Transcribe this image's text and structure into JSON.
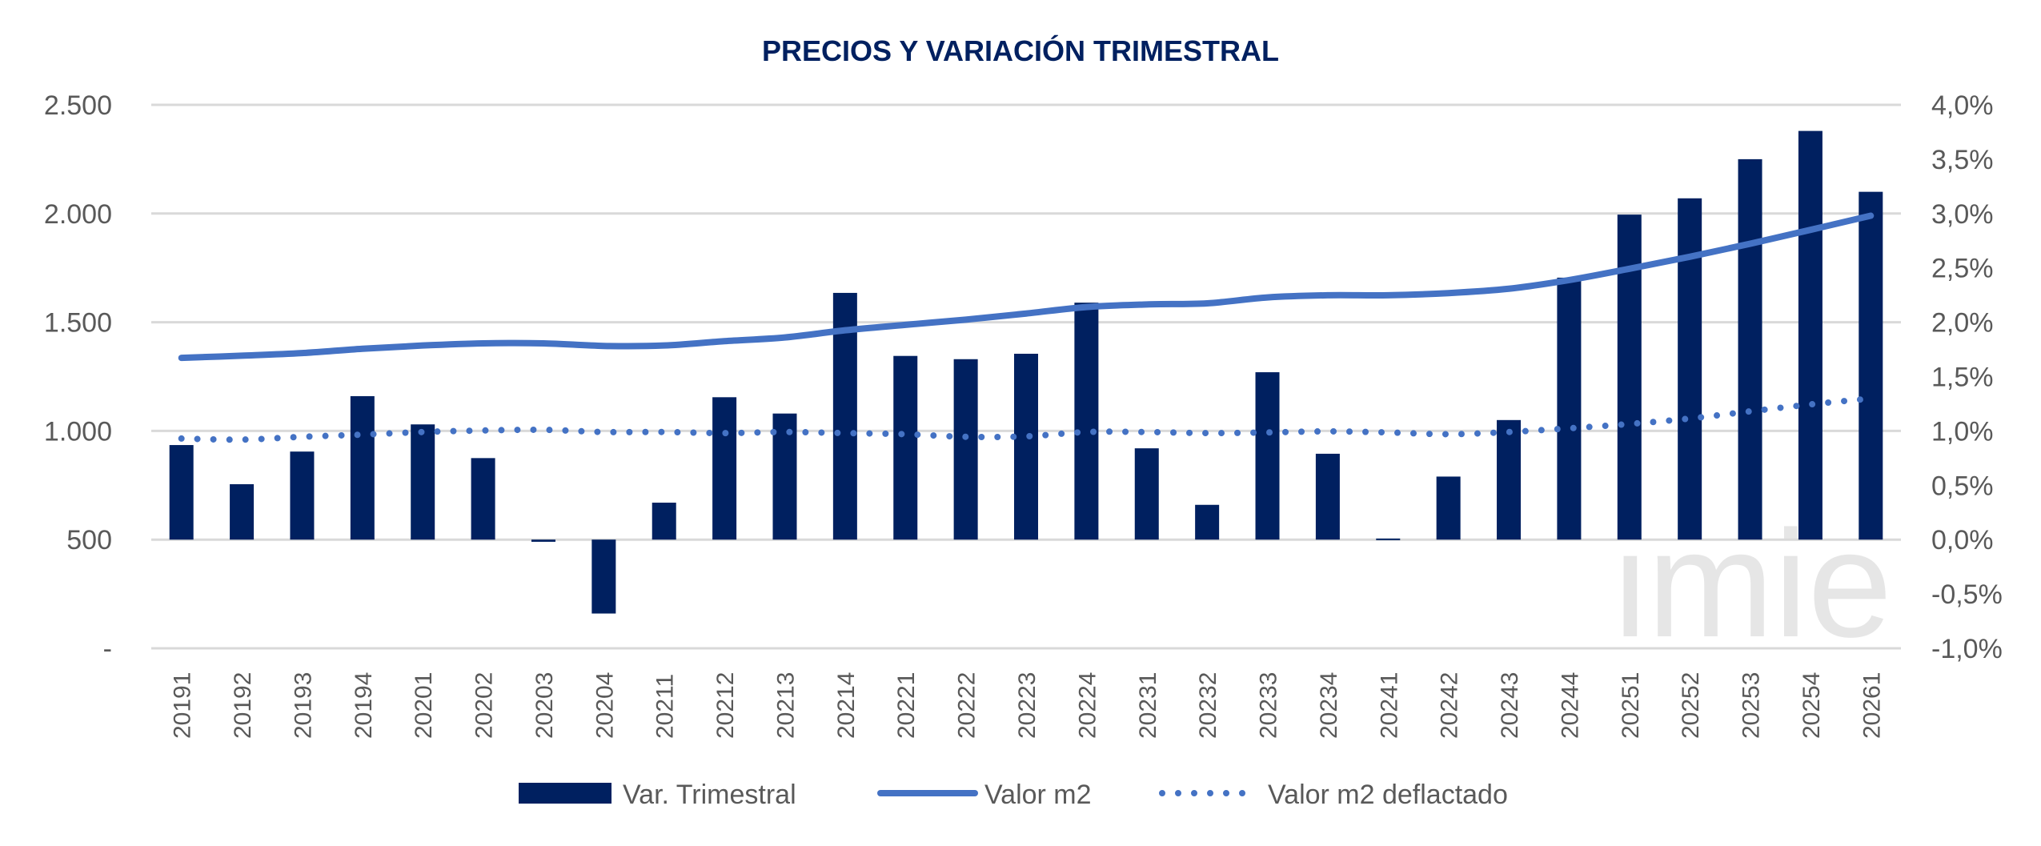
{
  "chart_data": {
    "type": "bar+line",
    "title": "PRECIOS Y VARIACIÓN TRIMESTRAL",
    "watermark": "imie",
    "categories": [
      "20191",
      "20192",
      "20193",
      "20194",
      "20201",
      "20202",
      "20203",
      "20204",
      "20211",
      "20212",
      "20213",
      "20214",
      "20221",
      "20222",
      "20223",
      "20224",
      "20231",
      "20232",
      "20233",
      "20234",
      "20241",
      "20242",
      "20243",
      "20244",
      "20251",
      "20252",
      "20253",
      "20254",
      "20261"
    ],
    "y_left": {
      "range": [
        0,
        2500
      ],
      "ticks": [
        0,
        500,
        1000,
        1500,
        2000,
        2500
      ],
      "tick_labels": [
        "-",
        "500",
        "1.000",
        "1.500",
        "2.000",
        "2.500"
      ]
    },
    "y_right": {
      "range": [
        -1.0,
        4.0
      ],
      "unit": "%",
      "ticks": [
        -1.0,
        -0.5,
        0,
        0.5,
        1.0,
        1.5,
        2.0,
        2.5,
        3.0,
        3.5,
        4.0
      ],
      "tick_labels": [
        "-1,0%",
        "-0,5%",
        "0,0%",
        "0,5%",
        "1,0%",
        "1,5%",
        "2,0%",
        "2,5%",
        "3,0%",
        "3,5%",
        "4,0%"
      ]
    },
    "grid": true,
    "legend_position": "bottom",
    "series": [
      {
        "name": "Var. Trimestral",
        "type": "bar",
        "axis": "right",
        "color": "#002060",
        "values": [
          0.87,
          0.51,
          0.81,
          1.32,
          1.06,
          0.75,
          -0.02,
          -0.68,
          0.34,
          1.31,
          1.16,
          2.27,
          1.69,
          1.66,
          1.71,
          2.18,
          0.84,
          0.32,
          1.54,
          0.79,
          0.01,
          0.58,
          1.1,
          2.41,
          2.99,
          3.14,
          3.5,
          3.76,
          3.2
        ]
      },
      {
        "name": "Valor m2",
        "type": "line",
        "axis": "left",
        "color": "#4472C4",
        "style": "solid",
        "values": [
          1336,
          1346,
          1358,
          1378,
          1393,
          1403,
          1403,
          1391,
          1393,
          1413,
          1430,
          1463,
          1488,
          1512,
          1540,
          1570,
          1582,
          1587,
          1614,
          1624,
          1624,
          1634,
          1654,
          1694,
          1746,
          1801,
          1861,
          1925,
          1990
        ]
      },
      {
        "name": "Valor m2 deflactado",
        "type": "line",
        "axis": "left",
        "color": "#4472C4",
        "style": "dotted",
        "values": [
          965,
          960,
          973,
          983,
          995,
          1002,
          1005,
          995,
          995,
          990,
          995,
          990,
          985,
          973,
          975,
          995,
          995,
          990,
          993,
          998,
          993,
          985,
          995,
          1012,
          1032,
          1057,
          1090,
          1122,
          1149
        ]
      }
    ]
  }
}
